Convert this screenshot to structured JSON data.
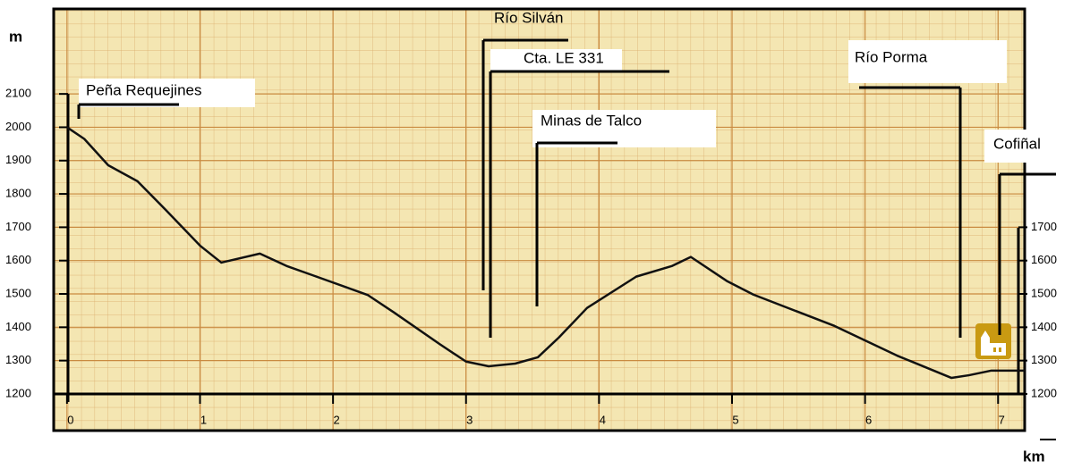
{
  "chart_data": {
    "type": "line",
    "y_label": "m",
    "x_label": "km",
    "x": [
      0,
      0.13,
      0.31,
      0.53,
      0.74,
      1.0,
      1.16,
      1.45,
      1.65,
      1.84,
      2.26,
      2.46,
      2.8,
      3.0,
      3.17,
      3.37,
      3.54,
      3.7,
      3.91,
      4.28,
      4.55,
      4.69,
      4.96,
      5.16,
      5.77,
      6.24,
      6.65,
      6.78,
      6.95,
      7.2
    ],
    "series": [
      {
        "color": "#111111",
        "values": [
          2000,
          1965,
          1886,
          1838,
          1753,
          1645,
          1594,
          1621,
          1584,
          1557,
          1497,
          1444,
          1350,
          1297,
          1283,
          1291,
          1310,
          1370,
          1458,
          1552,
          1584,
          1611,
          1539,
          1498,
          1404,
          1315,
          1248,
          1256,
          1270,
          1270
        ]
      }
    ],
    "xlim": [
      -0.1,
      7.2
    ],
    "xticks": [
      0,
      1,
      2,
      3,
      4,
      5,
      6,
      7
    ],
    "ylim": [
      1090,
      2355
    ],
    "yticks": [
      1200,
      1300,
      1400,
      1500,
      1600,
      1700,
      1800,
      1900,
      2000,
      2100
    ],
    "y2lim": [
      1090,
      2355
    ],
    "y2ticks": [
      1200,
      1300,
      1400,
      1500,
      1600,
      1700
    ],
    "annotations": [
      "Peña Requejines",
      "Río Silván",
      "Cta. LE 331",
      "Minas de Talco",
      "Río Porma",
      "Cofiñal"
    ]
  }
}
